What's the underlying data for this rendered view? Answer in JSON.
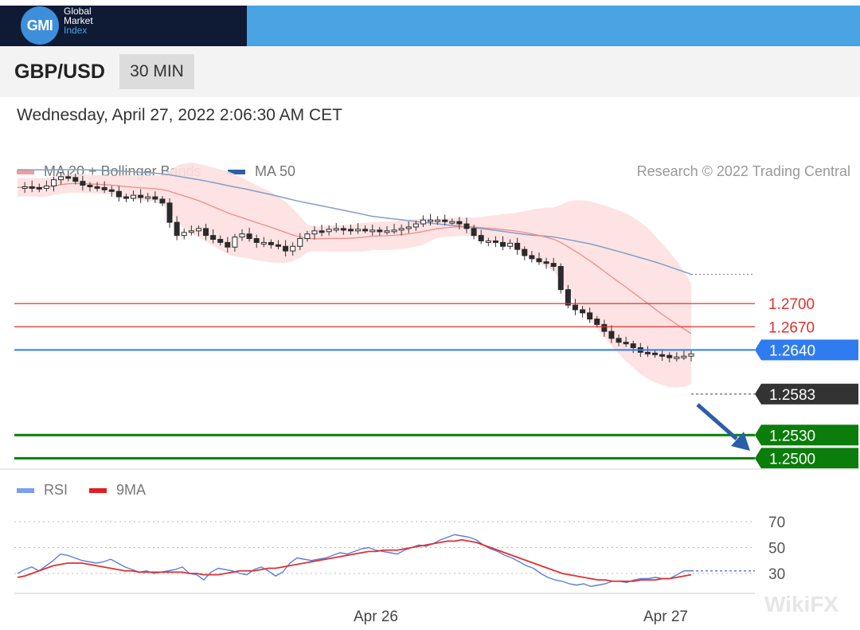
{
  "brand": {
    "logo_mark": "GMI",
    "line1": "Global",
    "line2": "Market",
    "line3": "Index"
  },
  "header": {
    "pair": "GBP/USD",
    "timeframe": "30 MIN"
  },
  "datetime": "Wednesday, April 27, 2022 2:06:30 AM CET",
  "legend": {
    "ma20": "MA 20 + Bollinger Bands",
    "ma50": "MA 50",
    "credit": "Research © 2022 Trading Central",
    "rsi": "RSI",
    "rsi_ma": "9MA"
  },
  "watermark": "WikiFX",
  "colors": {
    "ma20": "#f28a8a",
    "band_fill": "#fde0e0",
    "ma50": "#7f9fc8",
    "bull": "#444444",
    "bear": "#4a3a3a",
    "resistance": "#e03030",
    "pivot": "#2f7cf0",
    "current": "#333333",
    "target": "#0a7d0a",
    "rsi": "#5b7fe0",
    "rsi_ma": "#e03030",
    "arrow": "#2b5ea8"
  },
  "chart_data": [
    {
      "type": "candlestick",
      "title": "GBP/USD 30 MIN",
      "x_ticks": [
        "Apr 26",
        "Apr 27"
      ],
      "ylim": [
        1.2485,
        1.2905
      ],
      "close_series": [
        1.285,
        1.2851,
        1.285,
        1.2849,
        1.2852,
        1.286,
        1.2864,
        1.2863,
        1.2858,
        1.2853,
        1.2851,
        1.285,
        1.2847,
        1.2845,
        1.2838,
        1.2836,
        1.284,
        1.2837,
        1.2838,
        1.2835,
        1.283,
        1.2805,
        1.2788,
        1.2792,
        1.2794,
        1.2797,
        1.2788,
        1.2783,
        1.2779,
        1.2773,
        1.2786,
        1.279,
        1.2784,
        1.2779,
        1.2779,
        1.2776,
        1.2774,
        1.2768,
        1.2774,
        1.2784,
        1.279,
        1.2794,
        1.2793,
        1.2796,
        1.2797,
        1.2796,
        1.2795,
        1.2796,
        1.2795,
        1.2795,
        1.2794,
        1.2794,
        1.2795,
        1.2797,
        1.2799,
        1.2803,
        1.2808,
        1.2808,
        1.2808,
        1.2806,
        1.2806,
        1.2803,
        1.2797,
        1.2788,
        1.2781,
        1.2781,
        1.2779,
        1.2774,
        1.2778,
        1.277,
        1.2762,
        1.2758,
        1.2754,
        1.2752,
        1.2748,
        1.2718,
        1.2698,
        1.2692,
        1.2688,
        1.268,
        1.2673,
        1.2664,
        1.2655,
        1.265,
        1.2648,
        1.2643,
        1.2637,
        1.2636,
        1.2634,
        1.2633,
        1.263,
        1.2631,
        1.2632,
        1.2635
      ],
      "levels": [
        {
          "label": "1.2700",
          "value": 1.27,
          "role": "resistance"
        },
        {
          "label": "1.2670",
          "value": 1.267,
          "role": "resistance"
        },
        {
          "label": "1.2640",
          "value": 1.264,
          "role": "pivot"
        },
        {
          "label": "1.2583",
          "value": 1.2583,
          "role": "current"
        },
        {
          "label": "1.2530",
          "value": 1.253,
          "role": "target"
        },
        {
          "label": "1.2500",
          "value": 1.25,
          "role": "target"
        }
      ],
      "series": [
        {
          "name": "MA 20 + Bollinger Bands"
        },
        {
          "name": "MA 50"
        }
      ]
    },
    {
      "type": "line",
      "title": "RSI",
      "y_ticks": [
        "70",
        "50",
        "30"
      ],
      "ylim": [
        15,
        75
      ],
      "series": [
        {
          "name": "RSI",
          "values": [
            30,
            33,
            35,
            32,
            36,
            40,
            45,
            44,
            42,
            40,
            39,
            38,
            39,
            41,
            38,
            35,
            33,
            31,
            32,
            30,
            31,
            32,
            33,
            35,
            30,
            29,
            25,
            31,
            34,
            33,
            32,
            30,
            29,
            33,
            35,
            32,
            28,
            31,
            38,
            42,
            41,
            40,
            41,
            42,
            44,
            46,
            45,
            47,
            49,
            50,
            48,
            47,
            46,
            45,
            48,
            50,
            52,
            51,
            53,
            56,
            58,
            60,
            59,
            58,
            56,
            52,
            49,
            47,
            44,
            42,
            39,
            36,
            34,
            30,
            27,
            25,
            24,
            22,
            21,
            22,
            20,
            21,
            22,
            24,
            24,
            23,
            25,
            26,
            26,
            27,
            26,
            26,
            29,
            32,
            32
          ]
        },
        {
          "name": "9MA",
          "values": [
            27,
            28,
            30,
            32,
            34,
            36,
            37,
            38,
            38,
            38,
            37,
            36,
            35,
            34,
            33,
            32,
            32,
            31,
            31,
            31,
            31,
            31,
            31,
            31,
            30,
            30,
            29,
            29,
            29,
            30,
            31,
            32,
            32,
            32,
            33,
            34,
            34,
            35,
            36,
            37,
            38,
            39,
            40,
            41,
            42,
            43,
            44,
            45,
            46,
            47,
            47,
            48,
            48,
            48,
            49,
            50,
            51,
            52,
            53,
            54,
            55,
            55,
            56,
            55,
            54,
            52,
            50,
            48,
            46,
            44,
            42,
            40,
            38,
            36,
            34,
            32,
            30,
            29,
            28,
            27,
            26,
            25,
            25,
            24,
            24,
            24,
            24,
            25,
            25,
            25,
            26,
            26,
            27,
            28,
            29
          ]
        }
      ]
    }
  ]
}
